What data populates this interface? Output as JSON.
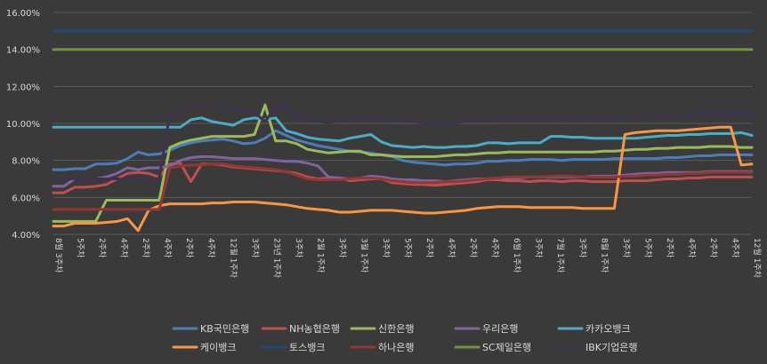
{
  "chart_data": {
    "type": "line",
    "ylim": [
      4,
      16
    ],
    "yticks": [
      "4.00%",
      "6.00%",
      "8.00%",
      "10.00%",
      "12.00%",
      "14.00%",
      "16.00%"
    ],
    "grid": "horizontal",
    "legend_position": "bottom",
    "xticks": [
      "8월 3주차",
      "5주차",
      "2주차",
      "4주차",
      "2주차",
      "4주차",
      "2주차",
      "4주차",
      "12월 1주차",
      "3주차",
      "23년 1주차",
      "3주차",
      "2월 1주차",
      "3주차",
      "3월 1주차",
      "3주차",
      "5주차",
      "2주차",
      "4주차",
      "2주차",
      "4주차",
      "6월 1주차",
      "3주차",
      "7월 1주차",
      "3주차",
      "8월 1주차",
      "3주차",
      "5주차",
      "2주차",
      "4주차",
      "2주차",
      "4주차",
      "12월 1주차"
    ],
    "x_count": 67,
    "series": [
      {
        "name": "KB국민은행",
        "color": "#4a7ebb",
        "values": [
          7.5,
          7.5,
          7.55,
          7.55,
          7.8,
          7.8,
          7.85,
          8.1,
          8.45,
          8.3,
          8.35,
          8.55,
          8.8,
          8.95,
          9.05,
          9.1,
          9.15,
          9.05,
          8.9,
          8.95,
          9.2,
          9.6,
          9.35,
          9.1,
          8.95,
          8.8,
          8.7,
          8.6,
          8.5,
          8.45,
          8.4,
          8.3,
          8.2,
          8.0,
          7.9,
          7.85,
          7.8,
          7.75,
          7.8,
          7.8,
          7.85,
          7.95,
          7.95,
          8.0,
          8.0,
          8.05,
          8.05,
          8.05,
          8.0,
          8.05,
          8.05,
          8.05,
          8.05,
          8.1,
          8.1,
          8.1,
          8.1,
          8.1,
          8.15,
          8.15,
          8.2,
          8.25,
          8.25,
          8.3,
          8.3,
          8.3,
          8.3
        ]
      },
      {
        "name": "NH농협은행",
        "color": "#c0504d",
        "values": [
          6.25,
          6.25,
          6.55,
          6.55,
          6.6,
          6.7,
          7.0,
          7.3,
          7.35,
          7.3,
          7.1,
          7.8,
          7.85,
          6.85,
          7.8,
          7.8,
          7.75,
          7.65,
          7.6,
          7.55,
          7.5,
          7.45,
          7.4,
          7.3,
          7.1,
          7.0,
          7.05,
          7.05,
          6.9,
          6.95,
          7.0,
          7.0,
          6.8,
          6.75,
          6.7,
          6.7,
          6.65,
          6.7,
          6.75,
          6.8,
          6.85,
          6.95,
          6.95,
          6.9,
          6.9,
          6.85,
          6.9,
          6.9,
          6.85,
          6.9,
          6.9,
          6.85,
          6.85,
          6.85,
          6.9,
          6.9,
          6.9,
          6.95,
          7.0,
          7.0,
          7.05,
          7.05,
          7.1,
          7.1,
          7.1,
          7.1,
          7.1
        ]
      },
      {
        "name": "신한은행",
        "color": "#9bbb59",
        "values": [
          4.7,
          4.7,
          4.7,
          4.7,
          4.7,
          5.85,
          5.85,
          5.85,
          5.85,
          5.85,
          5.85,
          8.7,
          8.95,
          9.1,
          9.2,
          9.3,
          9.3,
          9.3,
          9.3,
          9.4,
          11.0,
          9.05,
          9.05,
          8.9,
          8.6,
          8.5,
          8.4,
          8.45,
          8.5,
          8.5,
          8.3,
          8.3,
          8.25,
          8.2,
          8.2,
          8.2,
          8.2,
          8.25,
          8.3,
          8.3,
          8.35,
          8.4,
          8.4,
          8.45,
          8.45,
          8.45,
          8.45,
          8.45,
          8.45,
          8.45,
          8.45,
          8.45,
          8.5,
          8.5,
          8.55,
          8.6,
          8.6,
          8.65,
          8.65,
          8.7,
          8.7,
          8.7,
          8.75,
          8.75,
          8.75,
          8.7,
          8.7
        ]
      },
      {
        "name": "우리은행",
        "color": "#8064a2",
        "values": [
          6.6,
          6.6,
          7.0,
          7.0,
          7.0,
          7.1,
          7.3,
          7.6,
          7.5,
          7.6,
          7.6,
          7.7,
          8.0,
          8.15,
          8.2,
          8.2,
          8.15,
          8.1,
          8.1,
          8.1,
          8.05,
          8.0,
          7.95,
          7.95,
          7.85,
          7.7,
          7.1,
          7.05,
          7.0,
          7.05,
          7.15,
          7.1,
          7.0,
          6.95,
          6.95,
          6.9,
          6.9,
          6.85,
          6.9,
          6.95,
          7.0,
          7.0,
          7.05,
          7.05,
          7.05,
          7.1,
          7.1,
          7.1,
          7.1,
          7.1,
          7.1,
          7.15,
          7.15,
          7.15,
          7.2,
          7.25,
          7.3,
          7.3,
          7.35,
          7.35,
          7.35,
          7.35,
          7.4,
          7.4,
          7.4,
          7.4,
          7.4
        ]
      },
      {
        "name": "카카오뱅크",
        "color": "#4bacc6",
        "values": [
          9.8,
          9.8,
          9.8,
          9.8,
          9.8,
          9.8,
          9.8,
          9.8,
          9.8,
          9.8,
          9.8,
          9.8,
          9.8,
          10.2,
          10.3,
          10.1,
          10.0,
          9.9,
          10.2,
          10.3,
          10.2,
          10.3,
          9.6,
          9.45,
          9.25,
          9.15,
          9.1,
          9.05,
          9.2,
          9.3,
          9.4,
          9.0,
          8.8,
          8.75,
          8.7,
          8.75,
          8.7,
          8.7,
          8.75,
          8.75,
          8.8,
          8.95,
          8.95,
          8.9,
          8.95,
          8.95,
          8.95,
          9.3,
          9.3,
          9.25,
          9.25,
          9.2,
          9.2,
          9.2,
          9.2,
          9.2,
          9.25,
          9.3,
          9.35,
          9.35,
          9.4,
          9.4,
          9.45,
          9.45,
          9.45,
          9.5,
          9.35
        ]
      },
      {
        "name": "케이뱅크",
        "color": "#f79646",
        "values": [
          4.45,
          4.45,
          4.6,
          4.6,
          4.6,
          4.65,
          4.7,
          4.85,
          4.2,
          5.3,
          5.55,
          5.65,
          5.65,
          5.65,
          5.65,
          5.7,
          5.7,
          5.75,
          5.75,
          5.75,
          5.7,
          5.65,
          5.6,
          5.5,
          5.4,
          5.35,
          5.3,
          5.2,
          5.2,
          5.25,
          5.3,
          5.3,
          5.3,
          5.25,
          5.2,
          5.15,
          5.15,
          5.2,
          5.25,
          5.3,
          5.4,
          5.45,
          5.5,
          5.5,
          5.5,
          5.45,
          5.45,
          5.45,
          5.45,
          5.45,
          5.4,
          5.4,
          5.4,
          5.4,
          9.4,
          9.5,
          9.55,
          9.6,
          9.6,
          9.6,
          9.65,
          9.7,
          9.75,
          9.8,
          9.8,
          7.75,
          7.8
        ]
      },
      {
        "name": "토스뱅크",
        "color": "#1f497d",
        "values": [
          15,
          15,
          15,
          15,
          15,
          15,
          15,
          15,
          15,
          15,
          15,
          15,
          15,
          15,
          15,
          15,
          15,
          15,
          15,
          15,
          15,
          15,
          15,
          15,
          15,
          15,
          15,
          15,
          15,
          15,
          15,
          15,
          15,
          15,
          15,
          15,
          15,
          15,
          15,
          15,
          15,
          15,
          15,
          15,
          15,
          15,
          15,
          15,
          15,
          15,
          15,
          15,
          15,
          15,
          15,
          15,
          15,
          15,
          15,
          15,
          15,
          15,
          15,
          15,
          15,
          15,
          15
        ]
      },
      {
        "name": "하나은행",
        "color": "#943634",
        "values": [
          5.35,
          5.35,
          5.35,
          5.35,
          5.35,
          5.35,
          5.35,
          5.35,
          5.35,
          5.35,
          5.35,
          7.6,
          7.7,
          7.75,
          7.75,
          7.8,
          7.8,
          7.7,
          7.65,
          7.6,
          7.55,
          7.5,
          7.4,
          7.2,
          7.0,
          6.95,
          6.95,
          6.95,
          7.0,
          7.05,
          7.05,
          7.0,
          6.9,
          6.85,
          6.8,
          6.8,
          6.8,
          6.85,
          6.85,
          6.9,
          6.95,
          7.0,
          7.05,
          7.1,
          7.1,
          7.1,
          7.1,
          7.15,
          7.15,
          7.15,
          7.1,
          7.1,
          7.1,
          7.1,
          7.15,
          7.15,
          7.2,
          7.2,
          7.25,
          7.25,
          7.3,
          7.3,
          7.35,
          7.35,
          7.35,
          7.35,
          7.35
        ]
      },
      {
        "name": "SC제일은행",
        "color": "#76923c",
        "values": [
          14,
          14,
          14,
          14,
          14,
          14,
          14,
          14,
          14,
          14,
          14,
          14,
          14,
          14,
          14,
          14,
          14,
          14,
          14,
          14,
          14,
          14,
          14,
          14,
          14,
          14,
          14,
          14,
          14,
          14,
          14,
          14,
          14,
          14,
          14,
          14,
          14,
          14,
          14,
          14,
          14,
          14,
          14,
          14,
          14,
          14,
          14,
          14,
          14,
          14,
          14,
          14,
          14,
          14,
          14,
          14,
          14,
          14,
          14,
          14,
          14,
          14,
          14,
          14,
          14,
          14,
          14
        ]
      },
      {
        "name": "IBK기업은행",
        "color": "#403151",
        "values": [
          7.0,
          7.0,
          7.0,
          7.0,
          7.0,
          7.0,
          7.0,
          7.0,
          7.0,
          7.0,
          7.0,
          10.5,
          10.7,
          10.85,
          10.9,
          10.9,
          10.9,
          10.8,
          10.7,
          10.6,
          10.1,
          10.9,
          10.9,
          10.4,
          10.2,
          10.1,
          10.05,
          10.1,
          10.2,
          10.25,
          10.3,
          10.25,
          10.2,
          10.15,
          10.1,
          10.05,
          10.0,
          10.0,
          10.05,
          10.1,
          10.15,
          10.15,
          10.2,
          10.25,
          10.25,
          10.25,
          10.25,
          10.25,
          10.25,
          10.25,
          10.25,
          10.25,
          10.25,
          10.25,
          10.3,
          10.3,
          10.35,
          10.4,
          10.45,
          10.5,
          10.5,
          10.5,
          10.55,
          10.55,
          10.55,
          10.55,
          10.5
        ]
      }
    ]
  }
}
